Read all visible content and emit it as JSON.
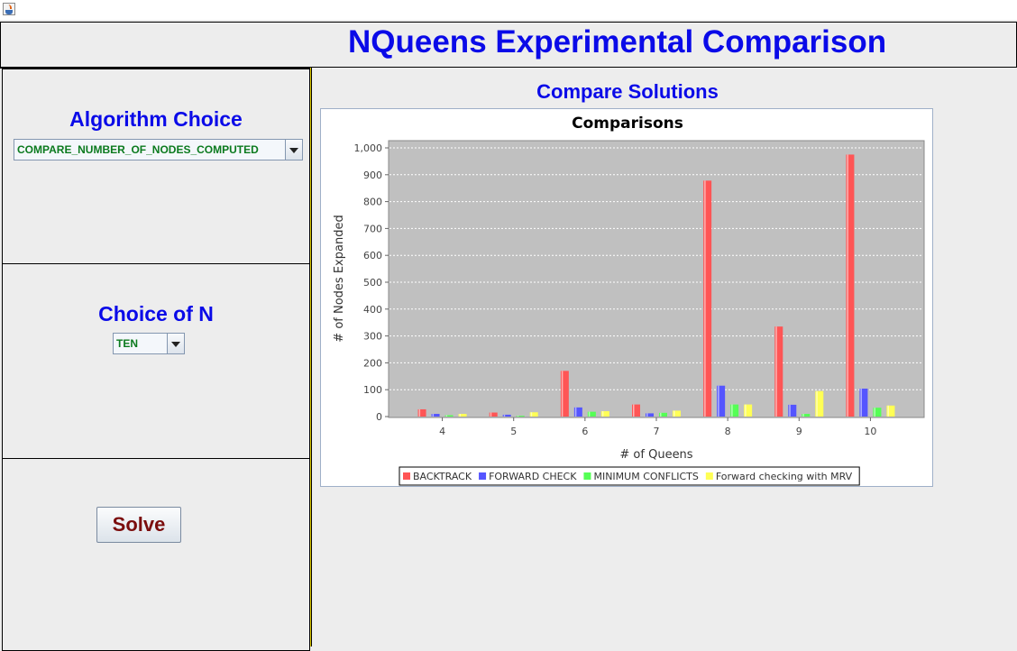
{
  "window": {
    "title_text": "NQueens Experimental Comparison"
  },
  "left": {
    "algorithm": {
      "title": "Algorithm Choice",
      "selected": "COMPARE_NUMBER_OF_NODES_COMPUTED"
    },
    "n": {
      "title": "Choice of N",
      "selected": "TEN"
    },
    "solve_label": "Solve"
  },
  "right": {
    "subtitle": "Compare Solutions"
  },
  "chart_data": {
    "type": "bar",
    "title": "Comparisons",
    "xlabel": "# of Queens",
    "ylabel": "# of Nodes Expanded",
    "ylim": [
      0,
      1000
    ],
    "yticks": [
      "0",
      "100",
      "200",
      "300",
      "400",
      "500",
      "600",
      "700",
      "800",
      "900",
      "1,000"
    ],
    "categories": [
      "4",
      "5",
      "6",
      "7",
      "8",
      "9",
      "10"
    ],
    "grid": true,
    "legend_position": "bottom",
    "series": [
      {
        "name": "BACKTRACK",
        "color": "#ff5555",
        "values": [
          27,
          15,
          170,
          45,
          878,
          335,
          975
        ]
      },
      {
        "name": "FORWARD CHECK",
        "color": "#5555ff",
        "values": [
          10,
          7,
          34,
          12,
          115,
          44,
          104
        ]
      },
      {
        "name": "MINIMUM CONFLICTS",
        "color": "#55ff55",
        "values": [
          5,
          3,
          18,
          14,
          45,
          10,
          33
        ]
      },
      {
        "name": "Forward checking with MRV",
        "color": "#ffff55",
        "values": [
          10,
          16,
          20,
          22,
          45,
          95,
          41
        ]
      }
    ]
  }
}
